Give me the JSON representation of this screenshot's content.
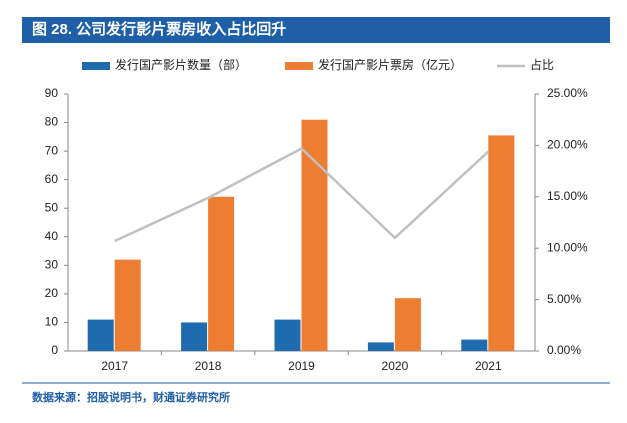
{
  "chart_data": {
    "type": "bar",
    "title": "图 28. 公司发行影片票房收入占比回升",
    "categories": [
      "2017",
      "2018",
      "2019",
      "2020",
      "2021"
    ],
    "series": [
      {
        "name": "发行国产影片数量（部）",
        "color": "#1f6bb0",
        "values": [
          11,
          10,
          11,
          3,
          4
        ]
      },
      {
        "name": "发行国产影片票房（亿元）",
        "color": "#ed7d31",
        "values": [
          32,
          54,
          81,
          18.5,
          75.5
        ]
      },
      {
        "name": "占比",
        "color": "#c0c0c0",
        "type": "line",
        "axis": "y2",
        "values": [
          10.7,
          14.9,
          19.7,
          11,
          19.4
        ]
      }
    ],
    "ylim": [
      0,
      90
    ],
    "yticks": [
      0,
      10,
      20,
      30,
      40,
      50,
      60,
      70,
      80,
      90
    ],
    "y2lim": [
      0,
      25
    ],
    "y2ticks": [
      {
        "value": 0,
        "label": "0.00%"
      },
      {
        "value": 5,
        "label": "5.00%"
      },
      {
        "value": 10,
        "label": "10.00%"
      },
      {
        "value": 15,
        "label": "15.00%"
      },
      {
        "value": 20,
        "label": "20.00%"
      },
      {
        "value": 25,
        "label": "25.00%"
      }
    ],
    "source": "数据来源：招股说明书，财通证券研究所"
  }
}
